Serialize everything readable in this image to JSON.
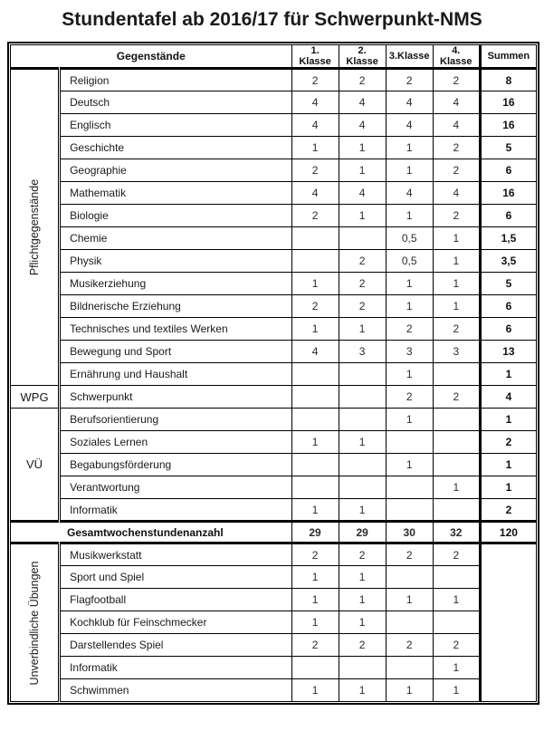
{
  "title": "Stundentafel ab 2016/17 für Schwerpunkt-NMS",
  "table": {
    "header": {
      "subjects_label": "Gegenstände",
      "columns": [
        "1. Klasse",
        "2. Klasse",
        "3.Klasse",
        "4. Klasse",
        "Summen"
      ]
    },
    "sections": [
      {
        "id": "pflichtgegenstaende",
        "label": "Pflichtgegenstände",
        "rotated": true,
        "rows": [
          {
            "subject": "Religion",
            "values": [
              "2",
              "2",
              "2",
              "2"
            ],
            "sum": "8"
          },
          {
            "subject": "Deutsch",
            "values": [
              "4",
              "4",
              "4",
              "4"
            ],
            "sum": "16"
          },
          {
            "subject": "Englisch",
            "values": [
              "4",
              "4",
              "4",
              "4"
            ],
            "sum": "16"
          },
          {
            "subject": "Geschichte",
            "values": [
              "1",
              "1",
              "1",
              "2"
            ],
            "sum": "5"
          },
          {
            "subject": "Geographie",
            "values": [
              "2",
              "1",
              "1",
              "2"
            ],
            "sum": "6"
          },
          {
            "subject": "Mathematik",
            "values": [
              "4",
              "4",
              "4",
              "4"
            ],
            "sum": "16"
          },
          {
            "subject": "Biologie",
            "values": [
              "2",
              "1",
              "1",
              "2"
            ],
            "sum": "6"
          },
          {
            "subject": "Chemie",
            "values": [
              "",
              "",
              "0,5",
              "1"
            ],
            "sum": "1,5"
          },
          {
            "subject": "Physik",
            "values": [
              "",
              "2",
              "0,5",
              "1"
            ],
            "sum": "3,5"
          },
          {
            "subject": "Musikerziehung",
            "values": [
              "1",
              "2",
              "1",
              "1"
            ],
            "sum": "5"
          },
          {
            "subject": "Bildnerische Erziehung",
            "values": [
              "2",
              "2",
              "1",
              "1"
            ],
            "sum": "6"
          },
          {
            "subject": "Technisches und textiles Werken",
            "values": [
              "1",
              "1",
              "2",
              "2"
            ],
            "sum": "6"
          },
          {
            "subject": "Bewegung und Sport",
            "values": [
              "4",
              "3",
              "3",
              "3"
            ],
            "sum": "13"
          },
          {
            "subject": "Ernährung und Haushalt",
            "values": [
              "",
              "",
              "1",
              ""
            ],
            "sum": "1"
          }
        ]
      },
      {
        "id": "wpg",
        "label": "WPG",
        "rotated": false,
        "rows": [
          {
            "subject": "Schwerpunkt",
            "values": [
              "",
              "",
              "2",
              "2"
            ],
            "sum": "4"
          }
        ]
      },
      {
        "id": "vue",
        "label": "VÜ",
        "rotated": false,
        "rows": [
          {
            "subject": "Berufsorientierung",
            "values": [
              "",
              "",
              "1",
              ""
            ],
            "sum": "1"
          },
          {
            "subject": "Soziales Lernen",
            "values": [
              "1",
              "1",
              "",
              ""
            ],
            "sum": "2"
          },
          {
            "subject": "Begabungsförderung",
            "values": [
              "",
              "",
              "1",
              ""
            ],
            "sum": "1"
          },
          {
            "subject": "Verantwortung",
            "values": [
              "",
              "",
              "",
              "1"
            ],
            "sum": "1"
          },
          {
            "subject": "Informatik",
            "values": [
              "1",
              "1",
              "",
              ""
            ],
            "sum": "2"
          }
        ]
      }
    ],
    "total_row": {
      "label": "Gesamtwochenstundenanzahl",
      "values": [
        "29",
        "29",
        "30",
        "32"
      ],
      "sum": "120"
    },
    "bottom_section": {
      "id": "unverbindliche-uebungen",
      "label": "Unverbindliche Übungen",
      "rotated": true,
      "sum": "",
      "rows": [
        {
          "subject": "Musikwerkstatt",
          "values": [
            "2",
            "2",
            "2",
            "2"
          ]
        },
        {
          "subject": "Sport und Spiel",
          "values": [
            "1",
            "1",
            "",
            ""
          ]
        },
        {
          "subject": "Flagfootball",
          "values": [
            "1",
            "1",
            "1",
            "1"
          ]
        },
        {
          "subject": "Kochklub für Feinschmecker",
          "values": [
            "1",
            "1",
            "",
            ""
          ]
        },
        {
          "subject": "Darstellendes Spiel",
          "values": [
            "2",
            "2",
            "2",
            "2"
          ]
        },
        {
          "subject": "Informatik",
          "values": [
            "",
            "",
            "",
            "1"
          ]
        },
        {
          "subject": "Schwimmen",
          "values": [
            "1",
            "1",
            "1",
            "1"
          ]
        }
      ]
    }
  }
}
